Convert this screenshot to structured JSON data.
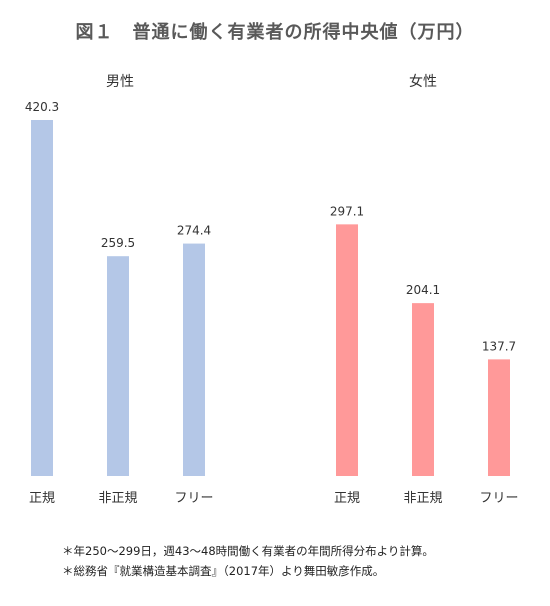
{
  "chart_data": {
    "type": "bar",
    "title": "図１　普通に働く有業者の所得中央値（万円）",
    "groups": [
      {
        "name": "男性",
        "color": "#B4C7E7",
        "categories": [
          "正規",
          "非正規",
          "フリー"
        ],
        "values": [
          420.3,
          259.5,
          274.4
        ]
      },
      {
        "name": "女性",
        "color": "#FF9999",
        "categories": [
          "正規",
          "非正規",
          "フリー"
        ],
        "values": [
          297.1,
          204.1,
          137.7
        ]
      }
    ],
    "ylim": [
      0,
      420.3
    ],
    "grid": false,
    "data_labels": true
  },
  "notes": [
    "＊年250〜299日，週43〜48時間働く有業者の年間所得分布より計算。",
    "＊総務省『就業構造基本調査』（2017年）より舞田敏彦作成。"
  ]
}
